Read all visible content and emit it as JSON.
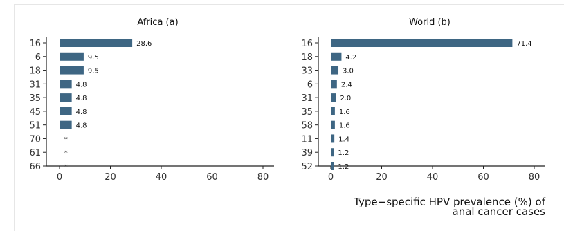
{
  "chart_data": [
    {
      "type": "bar",
      "orientation": "horizontal",
      "title": "Africa (a)",
      "categories": [
        "16",
        "6",
        "18",
        "31",
        "35",
        "45",
        "51",
        "70",
        "61",
        "66"
      ],
      "values": [
        28.6,
        9.5,
        9.5,
        4.8,
        4.8,
        4.8,
        4.8,
        0,
        0,
        0
      ],
      "data_labels": [
        "28.6",
        "9.5",
        "9.5",
        "4.8",
        "4.8",
        "4.8",
        "4.8",
        "*",
        "*",
        "*"
      ],
      "xlim": [
        0,
        80
      ],
      "xticks": [
        0,
        20,
        40,
        60,
        80
      ],
      "grid": false,
      "color": "#3e6683"
    },
    {
      "type": "bar",
      "orientation": "horizontal",
      "title": "World (b)",
      "categories": [
        "16",
        "18",
        "33",
        "6",
        "31",
        "35",
        "58",
        "11",
        "39",
        "52"
      ],
      "values": [
        71.4,
        4.2,
        3.0,
        2.4,
        2.0,
        1.6,
        1.6,
        1.4,
        1.2,
        1.2
      ],
      "data_labels": [
        "71.4",
        "4.2",
        "3.0",
        "2.4",
        "2.0",
        "1.6",
        "1.6",
        "1.4",
        "1.2",
        "1.2"
      ],
      "xlim": [
        0,
        80
      ],
      "xticks": [
        0,
        20,
        40,
        60,
        80
      ],
      "grid": false,
      "color": "#3e6683"
    }
  ],
  "shared_xlabel": [
    "Type−specific HPV prevalence (%) of",
    "anal cancer cases"
  ]
}
